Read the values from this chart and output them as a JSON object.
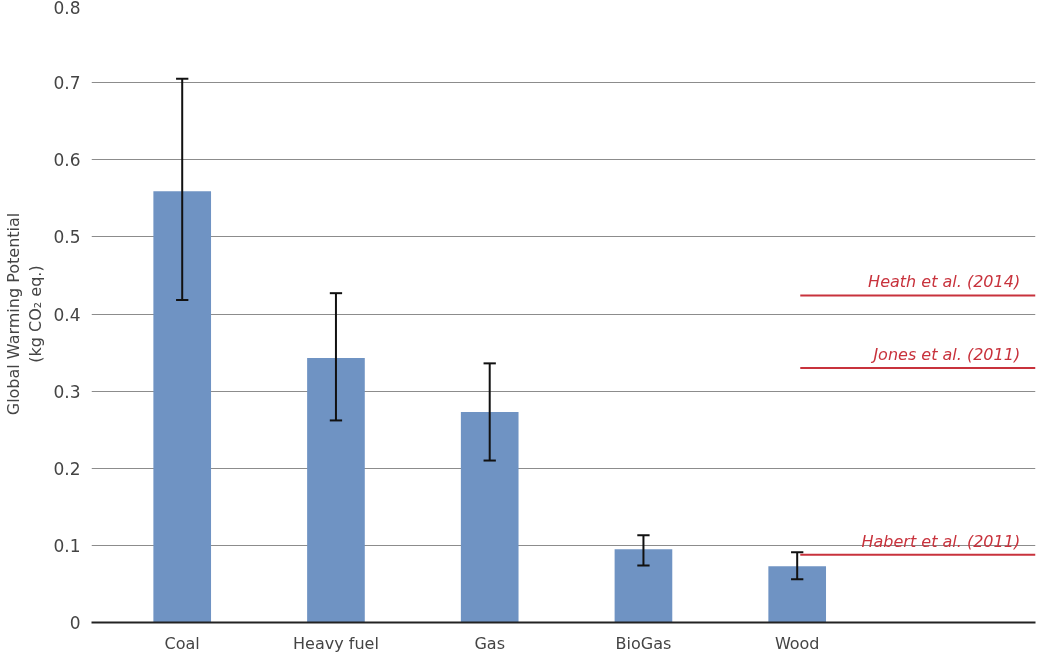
{
  "chart_data": {
    "type": "bar",
    "ylabel": "Global Warming Potential\n(kg CO₂ eq.)",
    "categories": [
      "Coal",
      "Heavy fuel",
      "Gas",
      "BioGas",
      "Wood"
    ],
    "values": [
      0.559,
      0.343,
      0.273,
      0.095,
      0.073
    ],
    "color": "#6f93c3",
    "errors": [
      [
        0.418,
        0.705
      ],
      [
        0.262,
        0.427
      ],
      [
        0.21,
        0.336
      ],
      [
        0.074,
        0.113
      ],
      [
        0.056,
        0.091
      ]
    ],
    "ylim": [
      0,
      0.8
    ],
    "yticks": [
      {
        "value": 0,
        "label": "0"
      },
      0.1,
      0.2,
      0.3,
      0.4,
      0.5,
      0.6,
      0.7,
      0.8
    ],
    "grid": "y",
    "ref_lines": [
      {
        "axis": "y",
        "value": 0.424,
        "label": "Heath et al. (2014)",
        "color": "#c8323c"
      },
      {
        "axis": "y",
        "value": 0.33,
        "label": "Jones et al. (2011)",
        "color": "#c8323c"
      },
      {
        "axis": "y",
        "value": 0.088,
        "label": "Habert et al. (2011)",
        "color": "#c8323c"
      }
    ]
  }
}
